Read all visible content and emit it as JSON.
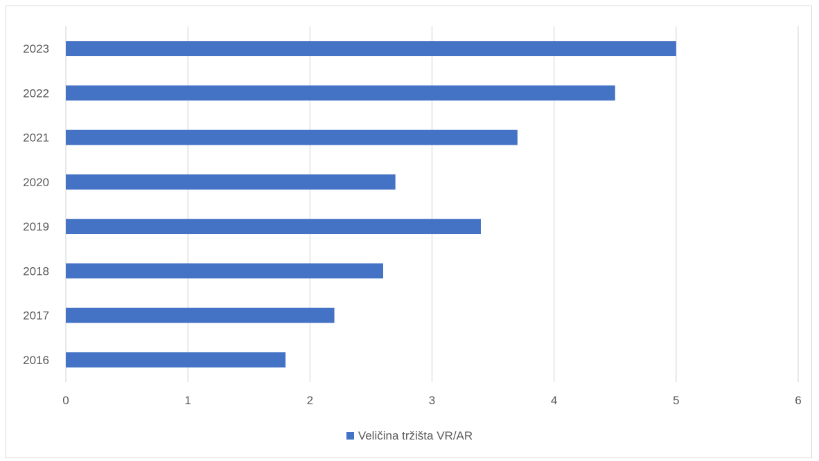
{
  "chart_data": {
    "type": "bar",
    "orientation": "horizontal",
    "categories": [
      "2016",
      "2017",
      "2018",
      "2019",
      "2020",
      "2021",
      "2022",
      "2023"
    ],
    "series": [
      {
        "name": "Veličina tržišta VR/AR",
        "values": [
          1.8,
          2.2,
          2.6,
          3.4,
          2.7,
          3.7,
          4.5,
          5.0
        ]
      }
    ],
    "xlim": [
      0,
      6
    ],
    "x_ticks": [
      "0",
      "1",
      "2",
      "3",
      "4",
      "5",
      "6"
    ],
    "grid": "vertical",
    "legend_position": "bottom",
    "bar_color": "#4472c4",
    "grid_color": "#d9d9d9"
  }
}
